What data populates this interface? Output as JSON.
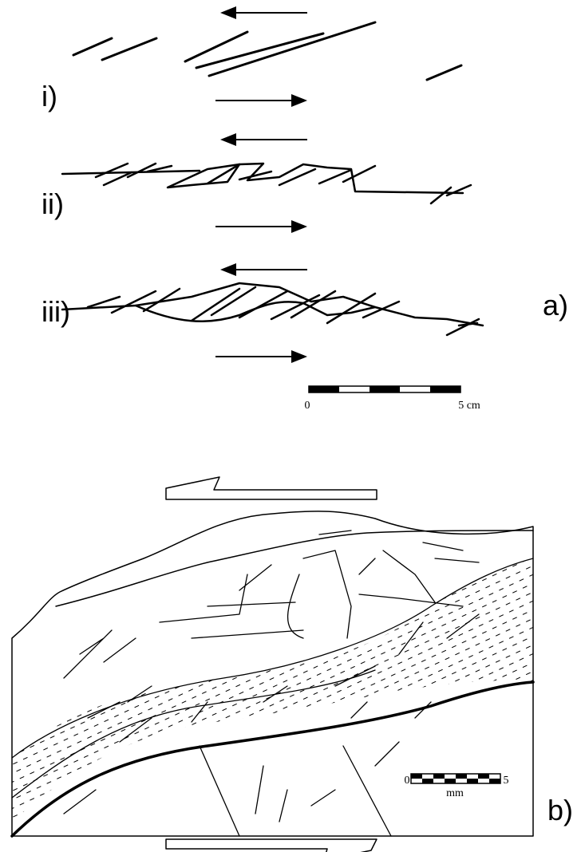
{
  "panel_a": {
    "label": "a)",
    "stages": [
      {
        "label": "i)"
      },
      {
        "label": "ii)"
      },
      {
        "label": "iii)"
      }
    ],
    "scale_bar": {
      "start": "0",
      "end": "5 cm"
    }
  },
  "panel_b": {
    "label": "b)",
    "scale_bar": {
      "start": "0",
      "end": "5",
      "unit": "mm"
    }
  }
}
